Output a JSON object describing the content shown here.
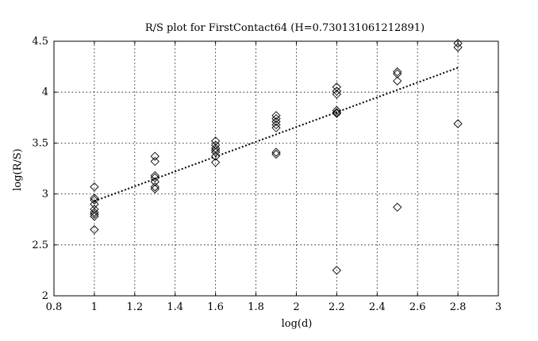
{
  "chart_data": {
    "type": "scatter",
    "title": "R/S plot for FirstContact64 (H=0.730131061212891)",
    "xlabel": "log(d)",
    "ylabel": "log(R/S)",
    "xlim": [
      0.8,
      3
    ],
    "ylim": [
      2,
      4.5
    ],
    "x_ticks": [
      "0.8",
      "1",
      "1.2",
      "1.4",
      "1.6",
      "1.8",
      "2",
      "2.2",
      "2.4",
      "2.6",
      "2.8",
      "3"
    ],
    "y_ticks": [
      "2",
      "2.5",
      "3",
      "3.5",
      "4",
      "4.5"
    ],
    "grid": true,
    "marker": "diamond",
    "series": [
      {
        "points": [
          {
            "x": 1.0,
            "y": 3.07
          },
          {
            "x": 1.0,
            "y": 2.96
          },
          {
            "x": 1.0,
            "y": 2.94
          },
          {
            "x": 1.0,
            "y": 2.9
          },
          {
            "x": 1.0,
            "y": 2.85
          },
          {
            "x": 1.0,
            "y": 2.82
          },
          {
            "x": 1.0,
            "y": 2.8
          },
          {
            "x": 1.0,
            "y": 2.78
          },
          {
            "x": 1.0,
            "y": 2.65
          },
          {
            "x": 1.3,
            "y": 3.37
          },
          {
            "x": 1.3,
            "y": 3.32
          },
          {
            "x": 1.3,
            "y": 3.18
          },
          {
            "x": 1.3,
            "y": 3.16
          },
          {
            "x": 1.3,
            "y": 3.12
          },
          {
            "x": 1.3,
            "y": 3.07
          },
          {
            "x": 1.3,
            "y": 3.05
          },
          {
            "x": 1.6,
            "y": 3.52
          },
          {
            "x": 1.6,
            "y": 3.48
          },
          {
            "x": 1.6,
            "y": 3.45
          },
          {
            "x": 1.6,
            "y": 3.43
          },
          {
            "x": 1.6,
            "y": 3.41
          },
          {
            "x": 1.6,
            "y": 3.37
          },
          {
            "x": 1.6,
            "y": 3.31
          },
          {
            "x": 1.9,
            "y": 3.77
          },
          {
            "x": 1.9,
            "y": 3.74
          },
          {
            "x": 1.9,
            "y": 3.71
          },
          {
            "x": 1.9,
            "y": 3.68
          },
          {
            "x": 1.9,
            "y": 3.65
          },
          {
            "x": 1.9,
            "y": 3.41
          },
          {
            "x": 1.9,
            "y": 3.39
          },
          {
            "x": 2.2,
            "y": 4.05
          },
          {
            "x": 2.2,
            "y": 4.01
          },
          {
            "x": 2.2,
            "y": 3.98
          },
          {
            "x": 2.2,
            "y": 3.82
          },
          {
            "x": 2.2,
            "y": 3.8
          },
          {
            "x": 2.2,
            "y": 3.79
          },
          {
            "x": 2.2,
            "y": 2.25
          },
          {
            "x": 2.5,
            "y": 4.2
          },
          {
            "x": 2.5,
            "y": 4.18
          },
          {
            "x": 2.5,
            "y": 4.11
          },
          {
            "x": 2.5,
            "y": 2.87
          },
          {
            "x": 2.8,
            "y": 4.48
          },
          {
            "x": 2.8,
            "y": 4.44
          },
          {
            "x": 2.8,
            "y": 3.69
          }
        ]
      }
    ],
    "fit_line": {
      "x": [
        1.0,
        2.8
      ],
      "y": [
        2.93,
        4.24
      ]
    }
  }
}
